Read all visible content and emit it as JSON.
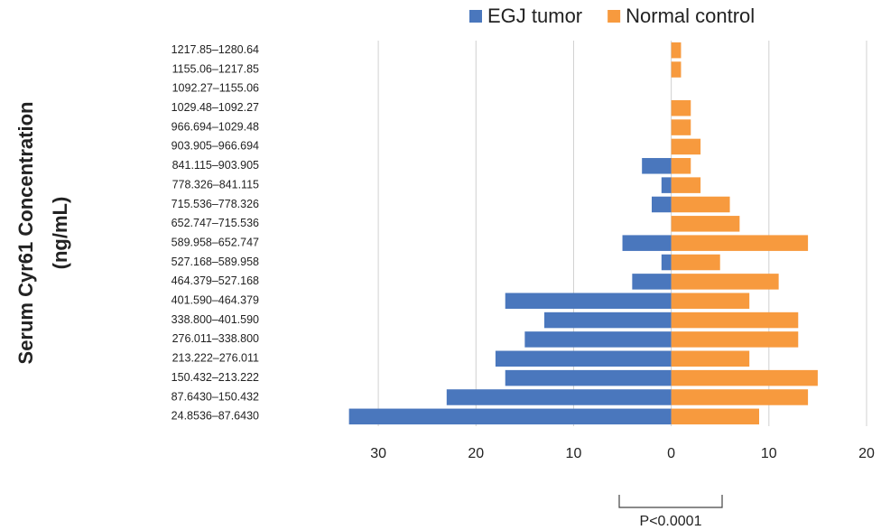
{
  "chart_data": {
    "type": "pyramid",
    "y_label": [
      "Serum Cyr61 Concentration",
      "(ng/mL)"
    ],
    "categories": [
      "24.8536–87.6430",
      "87.6430–150.432",
      "150.432–213.222",
      "213.222–276.011",
      "276.011–338.800",
      "338.800–401.590",
      "401.590–464.379",
      "464.379–527.168",
      "527.168–589.958",
      "589.958–652.747",
      "652.747–715.536",
      "715.536–778.326",
      "778.326–841.115",
      "841.115–903.905",
      "903.905–966.694",
      "966.694–1029.48",
      "1029.48–1092.27",
      "1092.27–1155.06",
      "1155.06–1217.85",
      "1217.85–1280.64"
    ],
    "series": [
      {
        "name": "EGJ tumor",
        "color": "#4a77bd",
        "values": [
          -33,
          -23,
          -17,
          -18,
          -15,
          -13,
          -17,
          -4,
          -1,
          -5,
          0,
          -2,
          -1,
          -3,
          0,
          0,
          0,
          0,
          0,
          0
        ]
      },
      {
        "name": "Normal control",
        "color": "#f79a3e",
        "values": [
          9,
          14,
          15,
          8,
          13,
          13,
          8,
          11,
          5,
          14,
          7,
          6,
          3,
          2,
          3,
          2,
          2,
          0,
          1,
          1
        ]
      }
    ],
    "xlim": [
      -35,
      20
    ],
    "xticks": [
      {
        "value": -30,
        "label": "30"
      },
      {
        "value": -20,
        "label": "20"
      },
      {
        "value": -10,
        "label": "10"
      },
      0,
      10,
      20
    ],
    "grid": true,
    "legend": "top",
    "annotation": "P<0.0001"
  }
}
